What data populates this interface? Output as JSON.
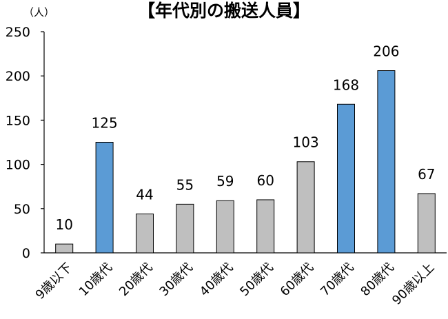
{
  "chart_data": {
    "type": "bar",
    "title": "【年代別の搬送人員】",
    "ylabel": "（人）",
    "categories": [
      "9歳以下",
      "10歳代",
      "20歳代",
      "30歳代",
      "40歳代",
      "50歳代",
      "60歳代",
      "70歳代",
      "80歳代",
      "90歳以上"
    ],
    "values": [
      10,
      125,
      44,
      55,
      59,
      60,
      103,
      168,
      206,
      67
    ],
    "highlight": [
      false,
      true,
      false,
      false,
      false,
      false,
      false,
      true,
      true,
      false
    ],
    "ylim": [
      0,
      250
    ],
    "yticks": [
      "0",
      "50",
      "100",
      "150",
      "200",
      "250"
    ],
    "grid": false,
    "legend": "none",
    "colors": {
      "normal": "#bfbfbf",
      "highlight": "#5b9bd5",
      "axis": "#000000"
    }
  }
}
